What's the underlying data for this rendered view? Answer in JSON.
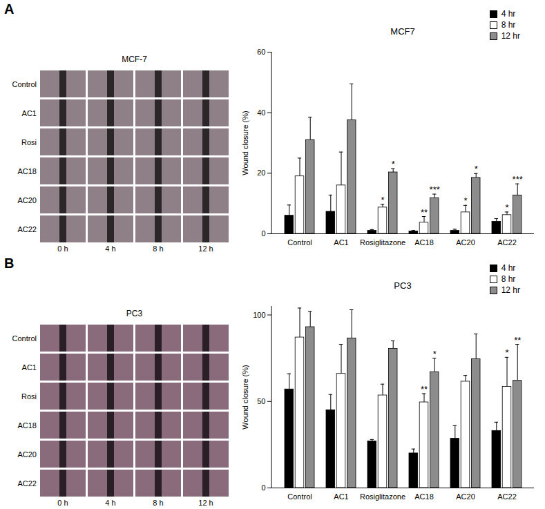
{
  "panels": [
    {
      "label": "A",
      "image_grid": {
        "title": "MCF-7",
        "rows": [
          "Control",
          "AC1",
          "Rosi",
          "AC18",
          "AC20",
          "AC22"
        ],
        "columns": [
          "0 h",
          "4 h",
          "8 h",
          "12 h"
        ]
      }
    },
    {
      "label": "B",
      "image_grid": {
        "title": "PC3",
        "rows": [
          "Control",
          "AC1",
          "Rosi",
          "AC18",
          "AC20",
          "AC22"
        ],
        "columns": [
          "0 h",
          "4 h",
          "8 h",
          "12 h"
        ]
      }
    }
  ],
  "chart_data": [
    {
      "type": "bar",
      "title": "MCF7",
      "y_label": "Wound closure (%)",
      "categories": [
        "Control",
        "AC1",
        "Rosiglitazone",
        "AC18",
        "AC20",
        "AC22"
      ],
      "ylim": [
        0,
        60
      ],
      "yticks": [
        0,
        20,
        40,
        60
      ],
      "legend": "top-right",
      "series": [
        {
          "name": "4 hr",
          "color": "#000000",
          "values": [
            6,
            7.3,
            1,
            0.8,
            1,
            4
          ],
          "errors": [
            3.5,
            5.5,
            0.4,
            0.3,
            0.5,
            1
          ],
          "annotations": [
            null,
            null,
            null,
            null,
            null,
            null
          ]
        },
        {
          "name": "8 hr",
          "color": "#ffffff",
          "values": [
            19,
            16,
            8.7,
            3.7,
            7.1,
            6.2
          ],
          "errors": [
            6,
            11,
            1,
            2,
            2.3,
            1
          ],
          "annotations": [
            null,
            null,
            "*",
            "**",
            "*",
            "*"
          ]
        },
        {
          "name": "12 hr",
          "color": "#8c8c8c",
          "values": [
            31,
            37.5,
            20.3,
            11.8,
            18.5,
            12.7
          ],
          "errors": [
            7.5,
            12,
            1.2,
            1.3,
            1.4,
            3.8
          ],
          "annotations": [
            null,
            null,
            "*",
            "***",
            "*",
            "***"
          ]
        }
      ]
    },
    {
      "type": "bar",
      "title": "PC3",
      "y_label": "Wound closure (%)",
      "categories": [
        "Control",
        "AC1",
        "Rosiglitazone",
        "AC18",
        "AC20",
        "AC22"
      ],
      "ylim": [
        0,
        105
      ],
      "yticks": [
        0,
        50,
        100
      ],
      "legend": "top-right",
      "series": [
        {
          "name": "4 hr",
          "color": "#000000",
          "values": [
            57,
            45,
            27,
            20,
            28.5,
            33
          ],
          "errors": [
            9,
            9,
            1,
            2.5,
            7.5,
            5
          ],
          "annotations": [
            null,
            null,
            null,
            null,
            null,
            null
          ]
        },
        {
          "name": "8 hr",
          "color": "#ffffff",
          "values": [
            87,
            66,
            53.5,
            49.5,
            61.5,
            58.5
          ],
          "errors": [
            17,
            17,
            6.5,
            5,
            3.5,
            17
          ],
          "annotations": [
            null,
            null,
            null,
            "**",
            null,
            "*"
          ]
        },
        {
          "name": "12 hr",
          "color": "#8c8c8c",
          "values": [
            93,
            86.5,
            80.5,
            67,
            74.5,
            62
          ],
          "errors": [
            9,
            16.5,
            4.5,
            8,
            14.5,
            21
          ],
          "annotations": [
            null,
            null,
            null,
            "*",
            null,
            "**"
          ]
        }
      ]
    }
  ]
}
